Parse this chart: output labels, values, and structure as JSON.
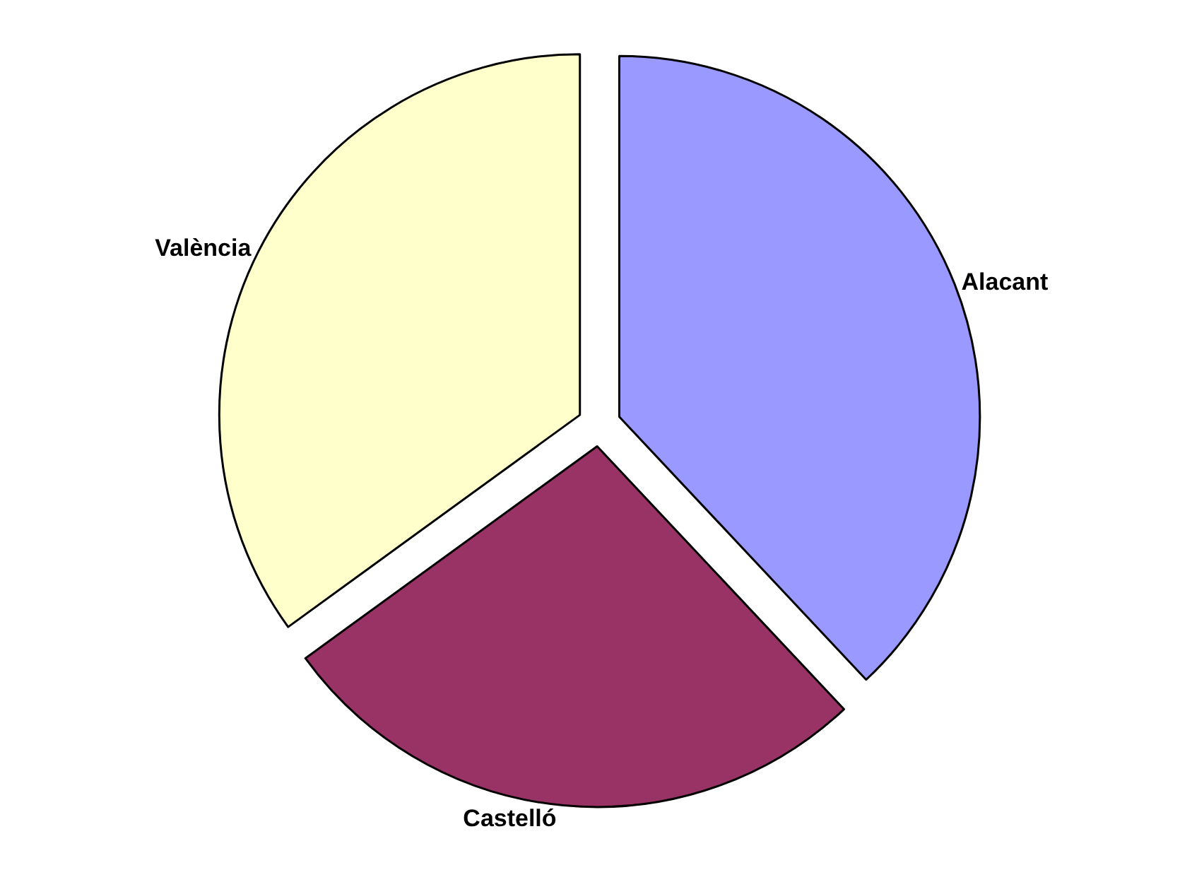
{
  "chart_data": {
    "type": "pie",
    "categories": [
      "Alacant",
      "Castelló",
      "València"
    ],
    "values": [
      38,
      27,
      35
    ],
    "colors": [
      "#9999ff",
      "#993366",
      "#ffffcc"
    ],
    "legend": false
  }
}
